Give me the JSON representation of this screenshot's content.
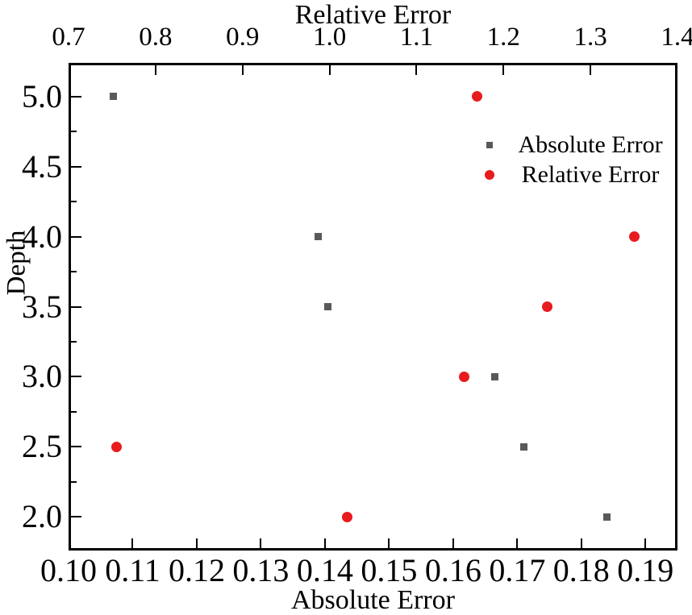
{
  "chart_data": {
    "type": "scatter",
    "top_axis": {
      "label": "Relative Error",
      "range": [
        0.7,
        1.4
      ],
      "tick_values": [
        0.7,
        0.8,
        0.9,
        1.0,
        1.1,
        1.2,
        1.3,
        1.4
      ],
      "tick_labels": [
        "0.7",
        "0.8",
        "0.9",
        "1.0",
        "1.1",
        "1.2",
        "1.3",
        "1.4"
      ]
    },
    "bottom_axis": {
      "label": "Absolute Error",
      "range": [
        0.1,
        0.195
      ],
      "tick_values": [
        0.1,
        0.11,
        0.12,
        0.13,
        0.14,
        0.15,
        0.16,
        0.17,
        0.18,
        0.19
      ],
      "tick_labels": [
        "0.10",
        "0.11",
        "0.12",
        "0.13",
        "0.14",
        "0.15",
        "0.16",
        "0.17",
        "0.18",
        "0.19"
      ]
    },
    "y_axis": {
      "label": "Depth",
      "range": [
        1.76,
        5.24
      ],
      "major_tick_values": [
        2.0,
        2.5,
        3.0,
        3.5,
        4.0,
        4.5,
        5.0
      ],
      "major_tick_labels": [
        "2.0",
        "2.5",
        "3.0",
        "3.5",
        "4.0",
        "4.5",
        "5.0"
      ],
      "minor_tick_values": [
        2.25,
        2.75,
        3.25,
        3.75,
        4.25,
        4.75
      ]
    },
    "series": [
      {
        "name": "Absolute Error",
        "marker": "square",
        "color": "#595959",
        "marker_size": 9,
        "x_axis": "bottom",
        "points": [
          [
            0.107,
            5.0
          ],
          [
            0.139,
            4.0
          ],
          [
            0.1405,
            3.5
          ],
          [
            0.1665,
            3.0
          ],
          [
            0.171,
            2.5
          ],
          [
            0.184,
            2.0
          ]
        ]
      },
      {
        "name": "Relative Error",
        "marker": "circle",
        "color": "#e81b1e",
        "marker_size": 13,
        "x_axis": "top",
        "points": [
          [
            1.17,
            5.0
          ],
          [
            1.35,
            4.0
          ],
          [
            1.25,
            3.5
          ],
          [
            1.155,
            3.0
          ],
          [
            0.755,
            2.5
          ],
          [
            1.02,
            2.0
          ]
        ]
      }
    ],
    "legend": {
      "position": "upper-right",
      "entries": [
        {
          "label": "Absolute Error",
          "marker": "square",
          "color": "#595959"
        },
        {
          "label": "Relative Error",
          "marker": "circle",
          "color": "#e81b1e"
        }
      ]
    },
    "frame_color": "#000000",
    "grid": "off"
  }
}
